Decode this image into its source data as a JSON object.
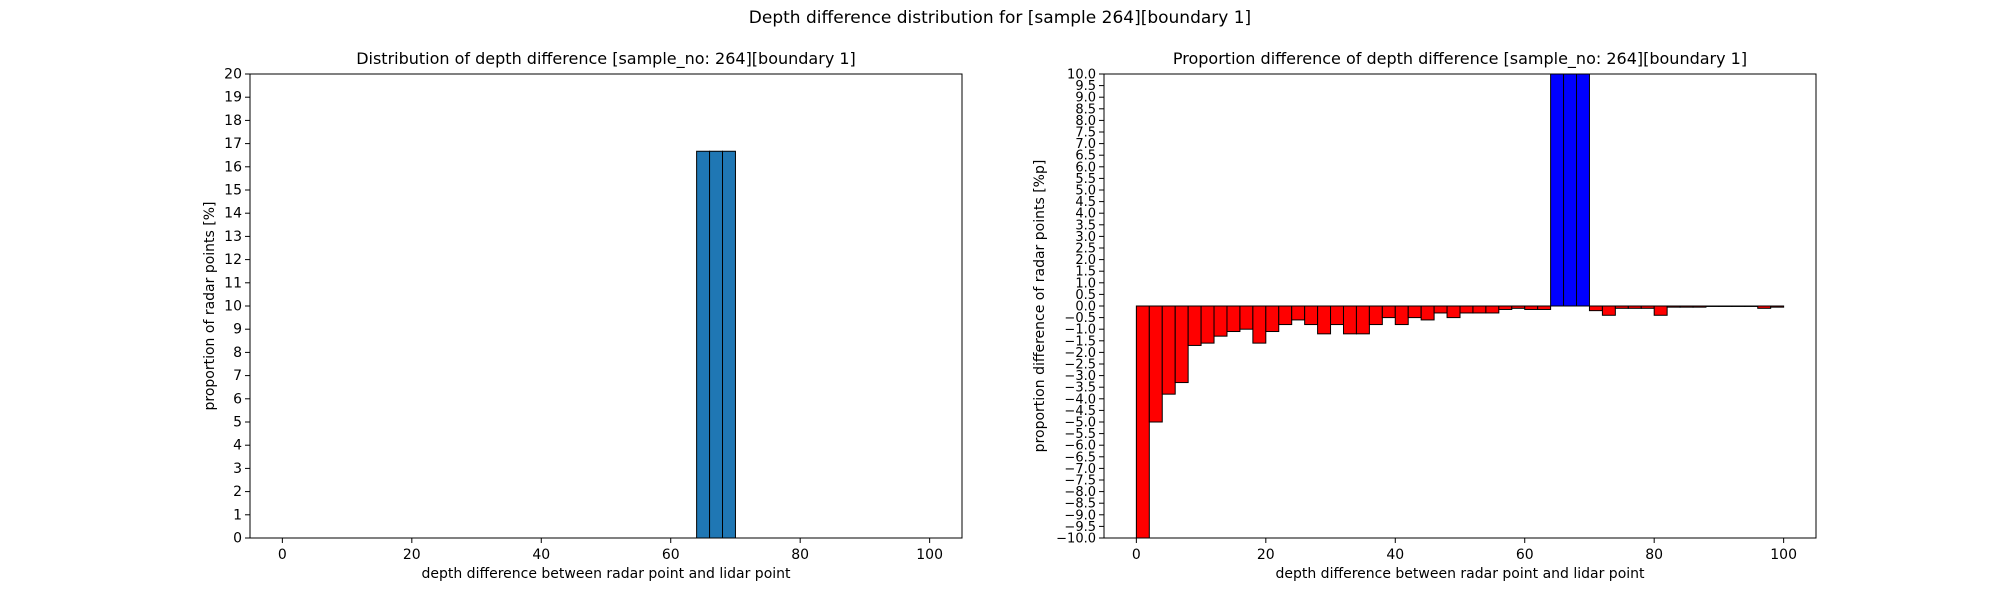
{
  "figure": {
    "suptitle": "Depth difference distribution for [sample 264][boundary 1]"
  },
  "colors": {
    "left_bar": "#1f77b4",
    "positive": "#0000ff",
    "negative": "#ff0000",
    "edge": "#000000"
  },
  "chart_data": [
    {
      "type": "bar",
      "title": "Distribution of depth difference [sample_no: 264][boundary 1]",
      "xlabel": "depth difference between radar point and lidar point",
      "ylabel": "proportion of radar points [%]",
      "xlim": [
        -5,
        105
      ],
      "ylim": [
        0,
        20
      ],
      "xticks": [
        "0",
        "20",
        "40",
        "60",
        "80",
        "100"
      ],
      "yticks": [
        "0",
        "1",
        "2",
        "3",
        "4",
        "5",
        "6",
        "7",
        "8",
        "9",
        "10",
        "11",
        "12",
        "13",
        "14",
        "15",
        "16",
        "17",
        "18",
        "19",
        "20"
      ],
      "bin_width": 2,
      "bars": [
        {
          "x": 64,
          "value": 16.67
        },
        {
          "x": 66,
          "value": 16.67
        },
        {
          "x": 68,
          "value": 16.67
        }
      ]
    },
    {
      "type": "bar",
      "title": "Proportion difference of depth difference [sample_no: 264][boundary 1]",
      "xlabel": "depth difference between radar point and lidar point",
      "ylabel": "proportion difference of radar points [%p]",
      "xlim": [
        -5,
        105
      ],
      "ylim": [
        -10,
        10
      ],
      "xticks": [
        "0",
        "20",
        "40",
        "60",
        "80",
        "100"
      ],
      "yticks": [
        "−10.0",
        "−9.5",
        "−9.0",
        "−8.5",
        "−8.0",
        "−7.5",
        "−7.0",
        "−6.5",
        "−6.0",
        "−5.5",
        "−5.0",
        "−4.5",
        "−4.0",
        "−3.5",
        "−3.0",
        "−2.5",
        "−2.0",
        "−1.5",
        "−1.0",
        "−0.5",
        "0.0",
        "0.5",
        "1.0",
        "1.5",
        "2.0",
        "2.5",
        "3.0",
        "3.5",
        "4.0",
        "4.5",
        "5.0",
        "5.5",
        "6.0",
        "6.5",
        "7.0",
        "7.5",
        "8.0",
        "8.5",
        "9.0",
        "9.5",
        "10.0"
      ],
      "bin_width": 2,
      "values": [
        -10.0,
        -5.0,
        -3.8,
        -3.3,
        -1.7,
        -1.6,
        -1.3,
        -1.1,
        -1.0,
        -1.6,
        -1.1,
        -0.8,
        -0.6,
        -0.8,
        -1.2,
        -0.8,
        -1.2,
        -1.2,
        -0.8,
        -0.5,
        -0.8,
        -0.5,
        -0.6,
        -0.3,
        -0.5,
        -0.3,
        -0.3,
        -0.3,
        -0.15,
        -0.1,
        -0.15,
        -0.15,
        16.67,
        16.67,
        16.67,
        -0.2,
        -0.4,
        -0.1,
        -0.1,
        -0.1,
        -0.4,
        -0.05,
        -0.05,
        -0.05,
        -0.02,
        -0.02,
        -0.02,
        -0.02,
        -0.1,
        -0.05
      ]
    }
  ]
}
